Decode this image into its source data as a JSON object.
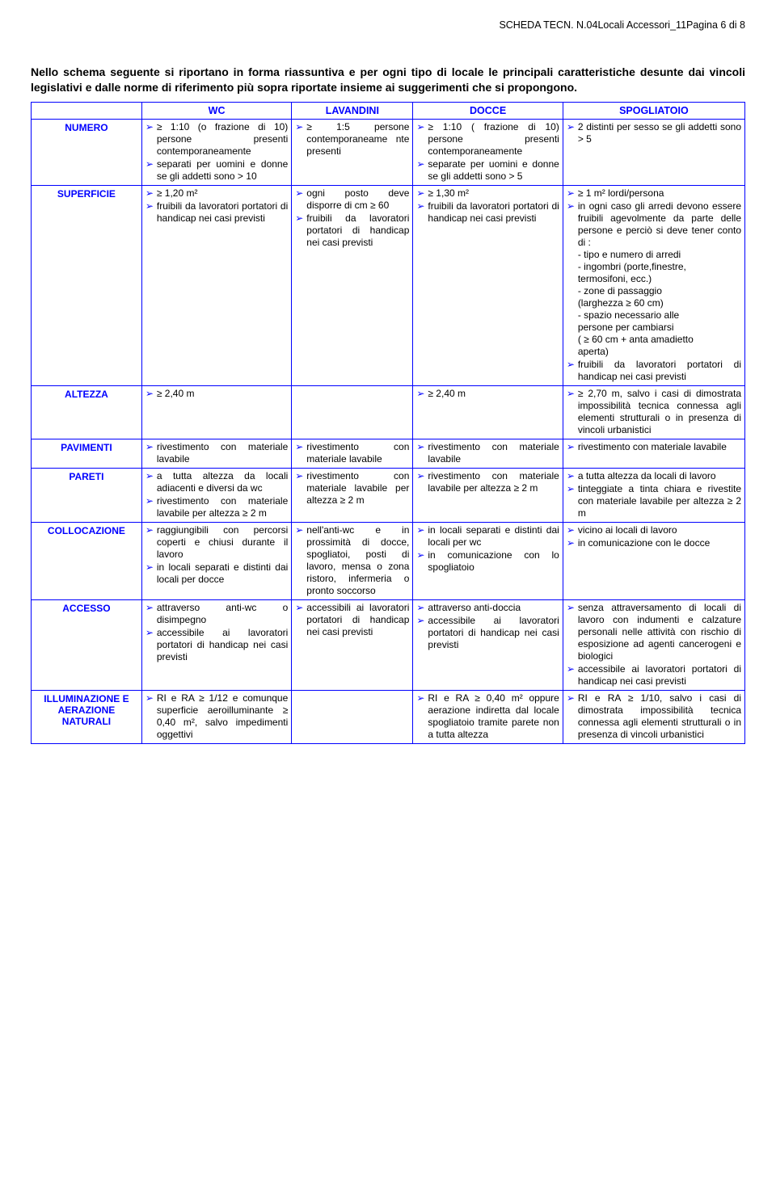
{
  "header": "SCHEDA TECN. N.04Locali Accessori_11Pagina 6 di 8",
  "intro": "Nello schema seguente si riportano in forma riassuntiva e per ogni tipo di locale le principali caratteristiche desunte dai vincoli legislativi e dalle norme di riferimento più sopra riportate insieme ai suggerimenti che si propongono.",
  "cols": [
    "",
    "WC",
    "LAVANDINI",
    "DOCCE",
    "SPOGLIATOIO"
  ],
  "rows": [
    {
      "label": "NUMERO",
      "wc": [
        "≥ 1:10 (o frazione di 10) persone presenti contemporaneamente",
        "separati per uomini e donne se gli addetti sono > 10"
      ],
      "lav": [
        "≥ 1:5 persone contemporaneame nte presenti"
      ],
      "doc": [
        "≥ 1:10 ( frazione di 10) persone presenti contemporaneamente",
        "separate per uomini e donne se gli addetti sono > 5"
      ],
      "spo": [
        "2 distinti per sesso se gli addetti sono > 5"
      ]
    },
    {
      "label": "SUPERFICIE",
      "wc": [
        "≥ 1,20 m²",
        "fruibili da lavoratori portatori di handicap nei casi previsti"
      ],
      "lav": [
        "ogni posto deve disporre di cm ≥ 60",
        "fruibili da lavoratori portatori di handicap nei casi previsti"
      ],
      "doc": [
        "≥ 1,30 m²",
        "fruibili da lavoratori portatori di handicap nei casi previsti"
      ],
      "spo": [
        "≥ 1 m² lordi/persona",
        "in ogni caso gli arredi devono essere fruibili agevolmente da parte delle persone e perciò si deve tener conto di :\n- tipo e numero di arredi\n- ingombri (porte,finestre,\n  termosifoni, ecc.)\n- zone di passaggio\n  (larghezza ≥ 60 cm)\n- spazio necessario alle\n  persone per cambiarsi\n  ( ≥ 60 cm + anta amadietto\n  aperta)",
        "fruibili da lavoratori portatori di handicap nei casi previsti"
      ]
    },
    {
      "label": "ALTEZZA",
      "wc": [
        "≥ 2,40 m"
      ],
      "lav": [],
      "doc": [
        "≥ 2,40 m"
      ],
      "spo": [
        "≥ 2,70 m, salvo i casi di dimostrata impossibilità tecnica connessa agli elementi strutturali o in presenza di vincoli urbanistici"
      ]
    },
    {
      "label": "PAVIMENTI",
      "wc": [
        "rivestimento con materiale lavabile"
      ],
      "lav": [
        "rivestimento con materiale lavabile"
      ],
      "doc": [
        "rivestimento con materiale lavabile"
      ],
      "spo": [
        "rivestimento con materiale lavabile"
      ]
    },
    {
      "label": "PARETI",
      "wc": [
        "a tutta altezza da locali adiacenti e diversi da wc",
        "rivestimento con materiale lavabile per altezza ≥ 2 m"
      ],
      "lav": [
        "rivestimento con materiale lavabile per altezza ≥ 2 m"
      ],
      "doc": [
        "rivestimento con materiale lavabile per altezza ≥ 2 m"
      ],
      "spo": [
        "a tutta altezza da locali di lavoro",
        "tinteggiate a tinta chiara e rivestite con materiale lavabile per altezza ≥ 2 m"
      ]
    },
    {
      "label": "COLLOCAZIONE",
      "wc": [
        "raggiungibili con percorsi coperti e chiusi durante il lavoro",
        "in locali separati e distinti dai locali per docce"
      ],
      "lav": [
        "nell'anti-wc e in prossimità di docce, spogliatoi, posti di lavoro, mensa o zona ristoro, infermeria o pronto soccorso"
      ],
      "doc": [
        "in locali separati e distinti dai locali per wc",
        "in comunicazione con lo spogliatoio"
      ],
      "spo": [
        "vicino ai locali di lavoro",
        "in comunicazione con le docce"
      ]
    },
    {
      "label": "ACCESSO",
      "wc": [
        "attraverso anti-wc o disimpegno",
        "accessibile ai lavoratori portatori di handicap nei casi previsti"
      ],
      "lav": [
        "accessibili ai lavoratori portatori di handicap nei casi previsti"
      ],
      "doc": [
        "attraverso anti-doccia",
        "accessibile ai lavoratori portatori di handicap nei casi previsti"
      ],
      "spo": [
        "senza attraversamento di locali di lavoro con indumenti e calzature personali nelle attività con rischio di esposizione ad agenti cancerogeni e biologici",
        "accessibile ai lavoratori portatori di handicap nei casi previsti"
      ]
    },
    {
      "label": "ILLUMINAZIONE E AERAZIONE NATURALI",
      "wc": [
        "RI e RA ≥ 1/12 e comunque superficie aeroilluminante ≥ 0,40 m², salvo impedimenti oggettivi"
      ],
      "lav": [],
      "doc": [
        "RI e RA ≥ 0,40 m² oppure aerazione indiretta dal locale spogliatoio tramite parete non a tutta altezza"
      ],
      "spo": [
        "RI e RA ≥ 1/10, salvo i casi di dimostrata impossibilità tecnica connessa agli elementi strutturali o in presenza di vincoli urbanistici"
      ]
    }
  ]
}
